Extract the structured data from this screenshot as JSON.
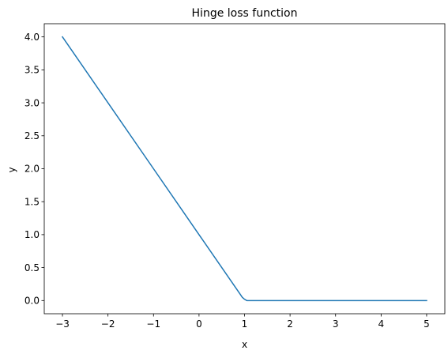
{
  "chart_data": {
    "type": "line",
    "title": "Hinge loss function",
    "xlabel": "x",
    "ylabel": "y",
    "xlim": [
      -3.4,
      5.4
    ],
    "ylim": [
      -0.2,
      4.2
    ],
    "grid": false,
    "xticks": [
      -3,
      -2,
      -1,
      0,
      1,
      2,
      3,
      4,
      5
    ],
    "xtick_labels": [
      "−3",
      "−2",
      "−1",
      "0",
      "1",
      "2",
      "3",
      "4",
      "5"
    ],
    "yticks": [
      0.0,
      0.5,
      1.0,
      1.5,
      2.0,
      2.5,
      3.0,
      3.5,
      4.0
    ],
    "ytick_labels": [
      "0.0",
      "0.5",
      "1.0",
      "1.5",
      "2.0",
      "2.5",
      "3.0",
      "3.5",
      "4.0"
    ],
    "series": [
      {
        "color": "#1f77b4",
        "x": [
          -3,
          -2,
          -1,
          0,
          0.9,
          0.95,
          1.0,
          1.05,
          1.1,
          2,
          3,
          4,
          5
        ],
        "y": [
          4,
          3,
          2,
          1,
          0.1,
          0.05,
          0.02,
          0,
          0,
          0,
          0,
          0,
          0
        ]
      }
    ]
  }
}
